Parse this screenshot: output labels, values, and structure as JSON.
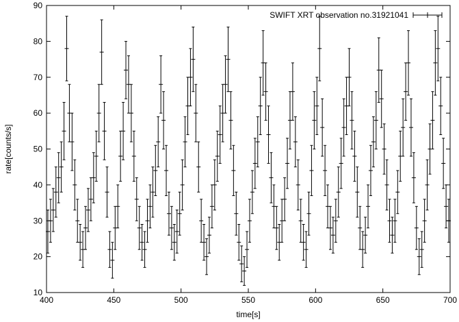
{
  "chart_data": {
    "type": "scatter",
    "title": "",
    "xlabel": "time[s]",
    "ylabel": "rate[counts/s]",
    "xlim": [
      400,
      700
    ],
    "ylim": [
      10,
      90
    ],
    "xticks": [
      "400",
      "450",
      "500",
      "550",
      "600",
      "650",
      "700"
    ],
    "yticks": [
      "10",
      "20",
      "30",
      "40",
      "50",
      "60",
      "70",
      "80",
      "90"
    ],
    "grid": false,
    "legend_position": "top-right",
    "series": [
      {
        "name": "SWIFT XRT observation no.31921041",
        "marker": "plus",
        "error_bars": true,
        "x": [
          401,
          403,
          405,
          407,
          409,
          411,
          413,
          415,
          417,
          419,
          421,
          423,
          425,
          427,
          429,
          431,
          433,
          435,
          437,
          439,
          441,
          443,
          445,
          447,
          449,
          451,
          453,
          455,
          457,
          459,
          461,
          463,
          465,
          467,
          469,
          471,
          473,
          475,
          477,
          479,
          481,
          483,
          485,
          487,
          489,
          491,
          493,
          495,
          497,
          499,
          501,
          503,
          505,
          507,
          509,
          511,
          513,
          515,
          517,
          519,
          521,
          523,
          525,
          527,
          529,
          531,
          533,
          535,
          537,
          539,
          541,
          543,
          545,
          547,
          549,
          551,
          553,
          555,
          557,
          559,
          561,
          563,
          565,
          567,
          569,
          571,
          573,
          575,
          577,
          579,
          581,
          583,
          585,
          587,
          589,
          591,
          593,
          595,
          597,
          599,
          601,
          603,
          605,
          607,
          609,
          611,
          613,
          615,
          617,
          619,
          621,
          623,
          625,
          627,
          629,
          631,
          633,
          635,
          637,
          639,
          641,
          643,
          645,
          647,
          649,
          651,
          653,
          655,
          657,
          659,
          661,
          663,
          665,
          667,
          669,
          671,
          673,
          675,
          677,
          679,
          681,
          683,
          685,
          687,
          689,
          691,
          693,
          695,
          697,
          699
        ],
        "y": [
          27,
          30,
          33,
          38,
          42,
          45,
          55,
          78,
          60,
          52,
          40,
          30,
          24,
          22,
          28,
          33,
          36,
          42,
          48,
          60,
          77,
          55,
          38,
          22,
          19,
          28,
          34,
          48,
          55,
          72,
          68,
          60,
          48,
          36,
          28,
          24,
          22,
          30,
          34,
          38,
          44,
          52,
          68,
          58,
          44,
          32,
          28,
          24,
          27,
          32,
          40,
          52,
          62,
          70,
          75,
          60,
          45,
          30,
          24,
          20,
          26,
          34,
          40,
          48,
          54,
          60,
          68,
          75,
          58,
          44,
          32,
          24,
          18,
          16,
          22,
          30,
          38,
          46,
          52,
          62,
          74,
          66,
          54,
          42,
          34,
          28,
          24,
          30,
          36,
          46,
          58,
          66,
          52,
          40,
          30,
          24,
          22,
          32,
          44,
          58,
          62,
          78,
          56,
          44,
          34,
          28,
          26,
          30,
          38,
          46,
          56,
          62,
          70,
          58,
          48,
          38,
          28,
          22,
          26,
          34,
          44,
          52,
          58,
          72,
          64,
          50,
          40,
          30,
          26,
          30,
          38,
          48,
          56,
          66,
          74,
          56,
          42,
          28,
          20,
          22,
          30,
          40,
          50,
          58,
          74,
          78,
          62,
          46,
          34,
          30
        ],
        "err": [
          6,
          6,
          6,
          7,
          7,
          7,
          8,
          9,
          8,
          8,
          7,
          6,
          5,
          5,
          6,
          6,
          6,
          7,
          7,
          8,
          9,
          8,
          7,
          5,
          5,
          6,
          6,
          7,
          8,
          8,
          8,
          8,
          7,
          6,
          6,
          5,
          5,
          6,
          6,
          7,
          7,
          7,
          8,
          8,
          7,
          6,
          6,
          5,
          6,
          6,
          7,
          7,
          8,
          8,
          9,
          8,
          7,
          6,
          5,
          5,
          5,
          6,
          7,
          7,
          8,
          8,
          8,
          9,
          8,
          7,
          6,
          5,
          5,
          4,
          5,
          6,
          6,
          7,
          7,
          8,
          9,
          8,
          8,
          7,
          6,
          6,
          5,
          6,
          6,
          7,
          8,
          8,
          7,
          7,
          6,
          5,
          5,
          6,
          7,
          8,
          8,
          9,
          8,
          7,
          6,
          6,
          5,
          6,
          7,
          7,
          8,
          8,
          8,
          8,
          7,
          7,
          6,
          5,
          5,
          6,
          7,
          7,
          8,
          9,
          8,
          7,
          7,
          6,
          5,
          6,
          6,
          7,
          8,
          8,
          9,
          8,
          7,
          6,
          5,
          5,
          6,
          7,
          7,
          8,
          9,
          9,
          8,
          7,
          6,
          6
        ]
      }
    ]
  }
}
